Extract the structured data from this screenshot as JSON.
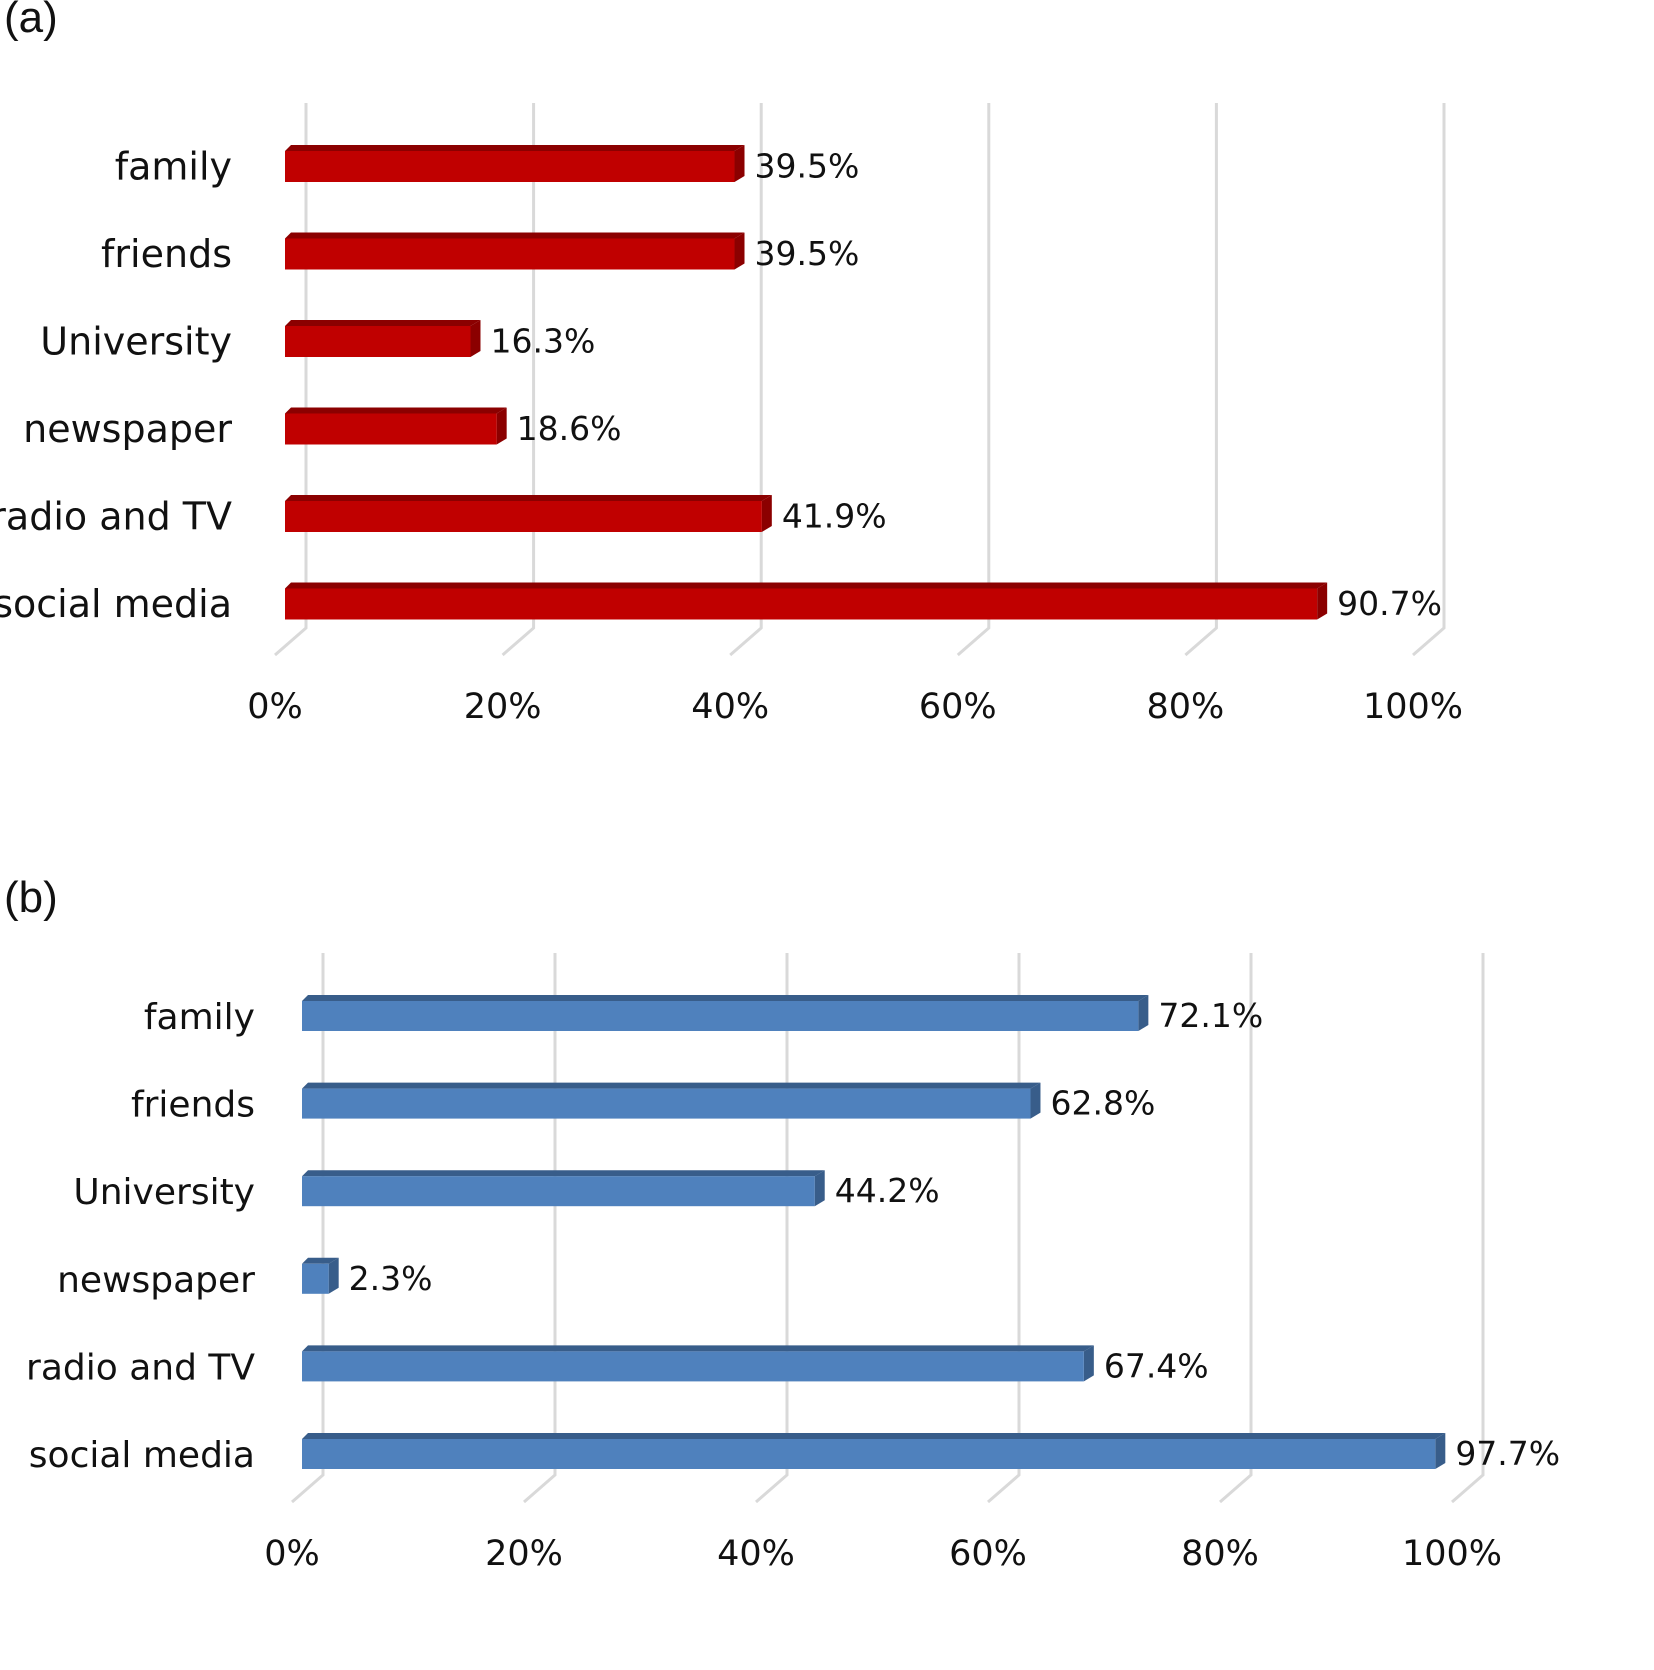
{
  "chart_data": [
    {
      "type": "bar",
      "orientation": "horizontal",
      "panel_label": "(a)",
      "categories": [
        "family",
        "friends",
        "University",
        "newspaper",
        "radio and TV",
        "social media"
      ],
      "values": [
        39.5,
        39.5,
        16.3,
        18.6,
        41.9,
        90.7
      ],
      "data_labels": [
        "39.5%",
        "39.5%",
        "16.3%",
        "18.6%",
        "41.9%",
        "90.7%"
      ],
      "xticks": [
        "0%",
        "20%",
        "40%",
        "60%",
        "80%",
        "100%"
      ],
      "xlim": [
        0,
        100
      ],
      "grid": true,
      "color": "#c00000",
      "color_top": "#8b0000"
    },
    {
      "type": "bar",
      "orientation": "horizontal",
      "panel_label": "(b)",
      "categories": [
        "family",
        "friends",
        "University",
        "newspaper",
        "radio and TV",
        "social media"
      ],
      "values": [
        72.1,
        62.8,
        44.2,
        2.3,
        67.4,
        97.7
      ],
      "data_labels": [
        "72.1%",
        "62.8%",
        "44.2%",
        "2.3%",
        "67.4%",
        "97.7%"
      ],
      "xticks": [
        "0%",
        "20%",
        "40%",
        "60%",
        "80%",
        "100%"
      ],
      "xlim": [
        0,
        100
      ],
      "grid": true,
      "color": "#4f81bd",
      "color_top": "#385d8a"
    }
  ]
}
